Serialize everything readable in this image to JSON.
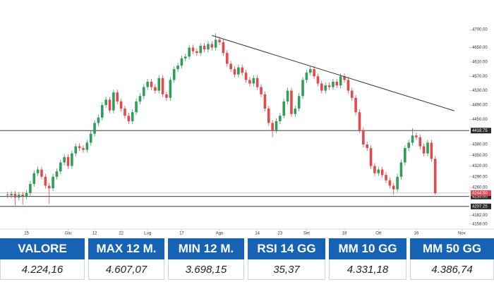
{
  "chart_data": {
    "type": "candlestick",
    "xlim": [
      -2,
      122
    ],
    "xticks": [
      {
        "value": 5,
        "label": "15"
      },
      {
        "value": 16,
        "label": "Giu"
      },
      {
        "value": 23,
        "label": "12"
      },
      {
        "value": 30,
        "label": "22"
      },
      {
        "value": 37,
        "label": "Lug"
      },
      {
        "value": 46,
        "label": "17"
      },
      {
        "value": 56,
        "label": "Ago"
      },
      {
        "value": 66,
        "label": "14"
      },
      {
        "value": 72,
        "label": "23"
      },
      {
        "value": 79,
        "label": "Set"
      },
      {
        "value": 89,
        "label": "18"
      },
      {
        "value": 98,
        "label": "Ott"
      },
      {
        "value": 108,
        "label": "16"
      },
      {
        "value": 120,
        "label": "Nov"
      }
    ],
    "ylim": [
      4144,
      4773
    ],
    "yticks": [
      {
        "value": 4700,
        "label": "4700.00"
      },
      {
        "value": 4650,
        "label": "4650.00"
      },
      {
        "value": 4610,
        "label": "4610.00"
      },
      {
        "value": 4570,
        "label": "4570.00"
      },
      {
        "value": 4530,
        "label": "4530.00"
      },
      {
        "value": 4490,
        "label": "4490.00"
      },
      {
        "value": 4450,
        "label": "4450.00"
      },
      {
        "value": 4380,
        "label": "4380.00"
      },
      {
        "value": 4350,
        "label": "4350.00"
      },
      {
        "value": 4320,
        "label": "4320.00"
      },
      {
        "value": 4290,
        "label": "4290.00"
      },
      {
        "value": 4260,
        "label": "4260.00"
      },
      {
        "value": 4182,
        "label": "4182.00"
      },
      {
        "value": 4158,
        "label": "4158.00"
      }
    ],
    "levels": [
      {
        "value": 4418.75,
        "label": "4418.75"
      },
      {
        "value": 4235,
        "label": "4235.00"
      },
      {
        "value": 4207.25,
        "label": "4207.25"
      }
    ],
    "last_price": {
      "value": 4244.5,
      "label": "4244.50"
    },
    "up_color": "#2e9e5b",
    "down_color": "#e5484d",
    "open": [
      4240,
      4238,
      4242,
      4232,
      4240,
      4236,
      4245,
      4270,
      4300,
      4310,
      4290,
      4265,
      4258,
      4290,
      4305,
      4330,
      4345,
      4320,
      4355,
      4375,
      4370,
      4365,
      4385,
      4410,
      4440,
      4455,
      4490,
      4505,
      4475,
      4525,
      4500,
      4480,
      4460,
      4445,
      4470,
      4500,
      4515,
      4540,
      4555,
      4540,
      4530,
      4565,
      4520,
      4510,
      4560,
      4590,
      4600,
      4620,
      4625,
      4650,
      4640,
      4635,
      4655,
      4645,
      4660,
      4650,
      4672,
      4665,
      4635,
      4605,
      4590,
      4575,
      4595,
      4580,
      4560,
      4550,
      4565,
      4540,
      4520,
      4480,
      4440,
      4420,
      4445,
      4460,
      4500,
      4530,
      4465,
      4480,
      4515,
      4560,
      4580,
      4590,
      4570,
      4550,
      4530,
      4545,
      4540,
      4555,
      4545,
      4570,
      4560,
      4530,
      4510,
      4470,
      4420,
      4380,
      4370,
      4320,
      4300,
      4310,
      4295,
      4280,
      4265,
      4255,
      4290,
      4330,
      4370,
      4385,
      4405,
      4400,
      4375,
      4355,
      4385,
      4340
    ],
    "high": [
      4248,
      4250,
      4250,
      4248,
      4248,
      4253,
      4278,
      4308,
      4318,
      4318,
      4298,
      4273,
      4298,
      4313,
      4338,
      4353,
      4353,
      4363,
      4383,
      4383,
      4378,
      4393,
      4418,
      4448,
      4463,
      4498,
      4513,
      4513,
      4533,
      4533,
      4508,
      4488,
      4468,
      4478,
      4508,
      4523,
      4548,
      4563,
      4563,
      4548,
      4573,
      4573,
      4528,
      4568,
      4598,
      4608,
      4628,
      4633,
      4658,
      4658,
      4648,
      4663,
      4663,
      4668,
      4668,
      4690,
      4680,
      4673,
      4643,
      4613,
      4598,
      4603,
      4603,
      4588,
      4568,
      4573,
      4573,
      4548,
      4528,
      4488,
      4448,
      4453,
      4468,
      4508,
      4538,
      4538,
      4488,
      4523,
      4568,
      4588,
      4598,
      4598,
      4578,
      4558,
      4553,
      4553,
      4563,
      4563,
      4578,
      4578,
      4568,
      4538,
      4518,
      4478,
      4428,
      4388,
      4378,
      4328,
      4318,
      4318,
      4303,
      4288,
      4273,
      4298,
      4338,
      4378,
      4393,
      4425,
      4413,
      4408,
      4383,
      4393,
      4393,
      4348
    ],
    "low": [
      4230,
      4230,
      4210,
      4224,
      4212,
      4228,
      4237,
      4262,
      4292,
      4282,
      4257,
      4215,
      4250,
      4282,
      4297,
      4322,
      4312,
      4312,
      4347,
      4362,
      4357,
      4357,
      4377,
      4402,
      4432,
      4447,
      4482,
      4467,
      4467,
      4492,
      4472,
      4452,
      4437,
      4437,
      4462,
      4492,
      4507,
      4532,
      4532,
      4522,
      4522,
      4512,
      4502,
      4502,
      4552,
      4582,
      4592,
      4612,
      4617,
      4632,
      4627,
      4627,
      4637,
      4637,
      4642,
      4642,
      4657,
      4627,
      4597,
      4582,
      4567,
      4567,
      4572,
      4552,
      4542,
      4542,
      4532,
      4512,
      4472,
      4432,
      4400,
      4412,
      4437,
      4452,
      4492,
      4457,
      4457,
      4472,
      4507,
      4552,
      4572,
      4562,
      4542,
      4522,
      4522,
      4532,
      4532,
      4537,
      4537,
      4552,
      4522,
      4502,
      4462,
      4412,
      4372,
      4362,
      4312,
      4292,
      4292,
      4287,
      4272,
      4257,
      4240,
      4247,
      4282,
      4322,
      4362,
      4377,
      4392,
      4367,
      4347,
      4347,
      4332,
      4240
    ],
    "close": [
      4238,
      4242,
      4232,
      4240,
      4236,
      4245,
      4270,
      4300,
      4310,
      4290,
      4265,
      4258,
      4290,
      4305,
      4330,
      4345,
      4320,
      4355,
      4375,
      4370,
      4365,
      4385,
      4410,
      4440,
      4455,
      4490,
      4505,
      4475,
      4525,
      4500,
      4480,
      4460,
      4445,
      4470,
      4500,
      4515,
      4540,
      4555,
      4540,
      4530,
      4565,
      4520,
      4510,
      4560,
      4590,
      4600,
      4620,
      4625,
      4650,
      4640,
      4635,
      4655,
      4645,
      4660,
      4650,
      4672,
      4665,
      4635,
      4605,
      4590,
      4575,
      4595,
      4580,
      4560,
      4550,
      4565,
      4540,
      4520,
      4480,
      4440,
      4420,
      4445,
      4460,
      4500,
      4530,
      4465,
      4480,
      4515,
      4560,
      4580,
      4590,
      4570,
      4550,
      4530,
      4545,
      4540,
      4555,
      4545,
      4570,
      4560,
      4530,
      4510,
      4470,
      4420,
      4380,
      4370,
      4320,
      4300,
      4310,
      4295,
      4280,
      4265,
      4255,
      4290,
      4330,
      4370,
      4385,
      4405,
      4400,
      4375,
      4355,
      4385,
      4340,
      4244.5
    ],
    "trendline": {
      "x": [
        54,
        118
      ],
      "values": [
        4684,
        4474
      ]
    }
  },
  "table": {
    "headers": [
      "VALORE",
      "MAX 12 M.",
      "MIN 12 M.",
      "RSI 14 GG",
      "MM 10 GG",
      "MM 50 GG"
    ],
    "values": [
      "4.224,16",
      "4.607,07",
      "3.698,15",
      "35,37",
      "4.331,18",
      "4.386,74"
    ]
  }
}
